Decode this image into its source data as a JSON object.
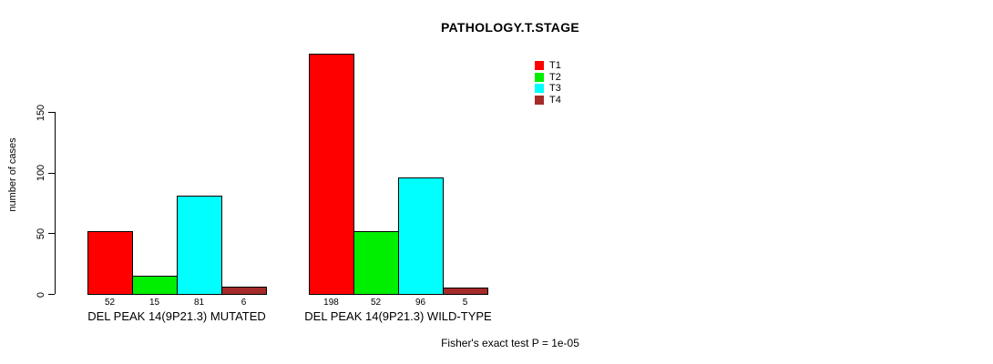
{
  "chart_data": {
    "type": "bar",
    "title": "PATHOLOGY.T.STAGE",
    "ylabel": "number of cases",
    "xlabel": "",
    "categories": [
      "DEL PEAK 14(9P21.3) MUTATED",
      "DEL PEAK 14(9P21.3) WILD-TYPE"
    ],
    "series": [
      {
        "name": "T1",
        "color": "#FF0000",
        "values": [
          52,
          198
        ]
      },
      {
        "name": "T2",
        "color": "#00EE00",
        "values": [
          15,
          52
        ]
      },
      {
        "name": "T3",
        "color": "#00FFFF",
        "values": [
          81,
          96
        ]
      },
      {
        "name": "T4",
        "color": "#A52A2A",
        "values": [
          6,
          5
        ]
      }
    ],
    "bar_value_labels": [
      [
        52,
        15,
        81,
        6
      ],
      [
        198,
        52,
        96,
        5
      ]
    ],
    "yticks": [
      0,
      50,
      100,
      150
    ],
    "ylim": [
      0,
      198
    ],
    "grid": false,
    "legend_position": "top-right",
    "annotation": "Fisher's exact test P = 1e-05",
    "background_color": "#FFFFFF",
    "axis_color": "#000000"
  }
}
